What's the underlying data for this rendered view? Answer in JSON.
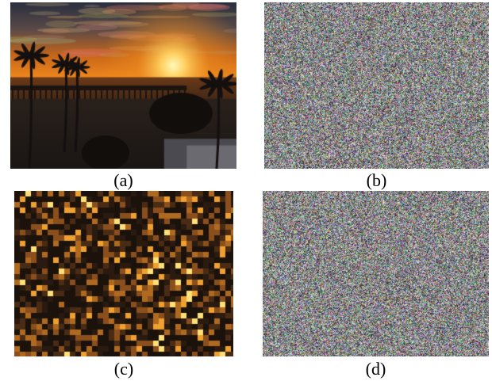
{
  "figure": {
    "panels": [
      {
        "id": "a",
        "caption": "(a)",
        "content": "sunset-photo",
        "colors": {
          "sky_top": "#2a2f3f",
          "sky_glow": "#f08a1c",
          "sun": "#fff4b0",
          "sea": "#3a2416",
          "silhouette": "#1a1614"
        }
      },
      {
        "id": "b",
        "caption": "(b)",
        "content": "random-noise-image"
      },
      {
        "id": "c",
        "caption": "(c)",
        "content": "scrambled-block-image",
        "colors": {
          "dark": "#1b120c",
          "mid": "#8a4f1c",
          "bright": "#f0a030",
          "highlight": "#ffe07a"
        }
      },
      {
        "id": "d",
        "caption": "(d)",
        "content": "random-noise-image"
      }
    ]
  }
}
